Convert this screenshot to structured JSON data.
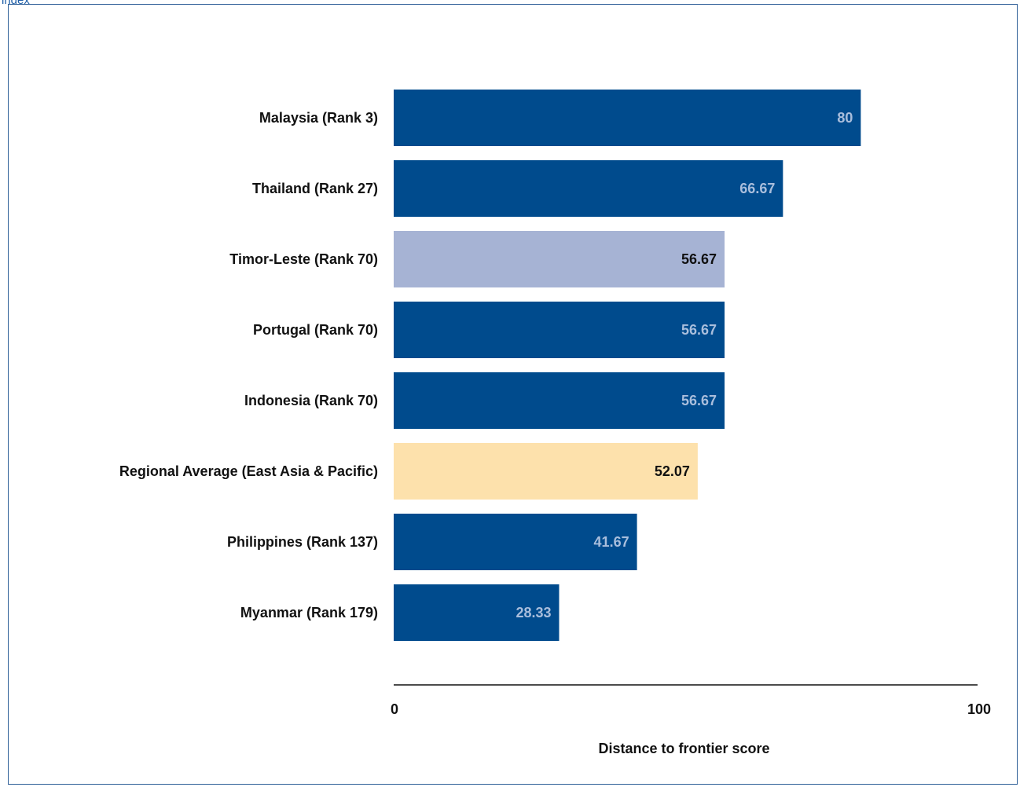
{
  "page": {
    "header_fragment": "index"
  },
  "colors": {
    "default_bar": "#004b8d",
    "highlight_bar": "#a6b3d4",
    "average_bar": "#fde1ac",
    "default_value_text": "#a9bedc",
    "highlight_value_text": "#111111",
    "average_value_text": "#111111"
  },
  "chart_data": {
    "type": "bar",
    "orientation": "horizontal",
    "categories": [
      "Malaysia (Rank 3)",
      "Thailand (Rank 27)",
      "Timor-Leste (Rank 70)",
      "Portugal (Rank 70)",
      "Indonesia (Rank 70)",
      "Regional Average (East Asia & Pacific)",
      "Philippines (Rank 137)",
      "Myanmar (Rank 179)"
    ],
    "values": [
      80,
      66.67,
      56.67,
      56.67,
      56.67,
      52.07,
      41.67,
      28.33
    ],
    "value_labels": [
      "80",
      "66.67",
      "56.67",
      "56.67",
      "56.67",
      "52.07",
      "41.67",
      "28.33"
    ],
    "bar_styles": [
      "default",
      "default",
      "highlight",
      "default",
      "default",
      "average",
      "default",
      "default"
    ],
    "xlim": [
      0,
      100
    ],
    "x_ticks": [
      "0",
      "100"
    ],
    "xlabel": "Distance to frontier score",
    "ylabel": "",
    "title": "",
    "grid": false,
    "legend": "none"
  }
}
